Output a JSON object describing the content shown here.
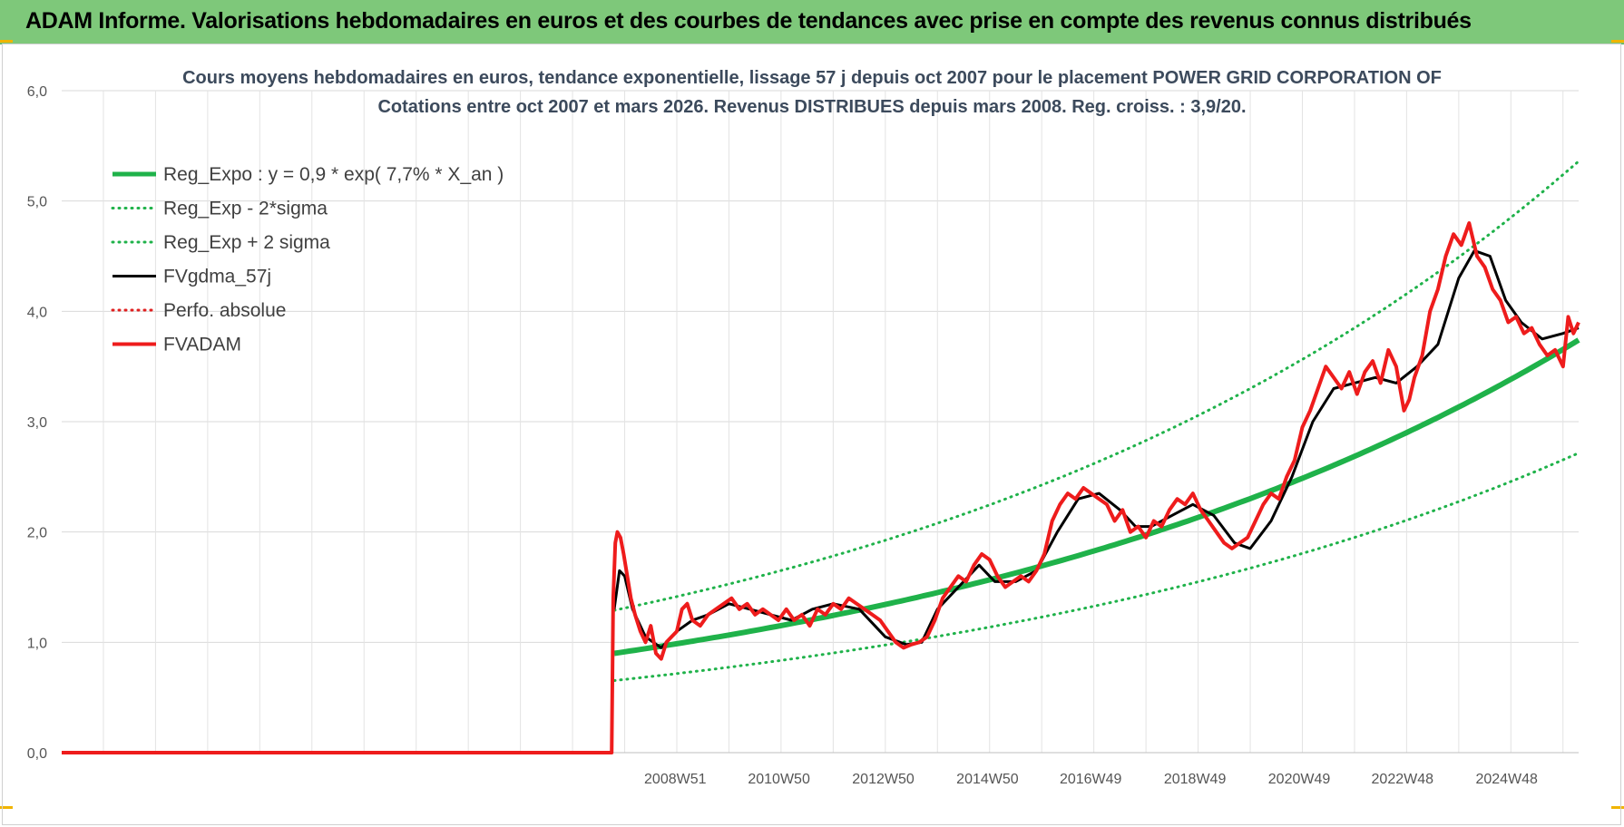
{
  "banner": {
    "title": "ADAM Informe. Valorisations hebdomadaires en euros et des courbes de tendances avec prise en compte des revenus connus distribués",
    "color": "#7ec87a"
  },
  "chart_data": {
    "type": "line",
    "title_lines": [
      "Cours moyens hebdomadaires en euros, tendance exponentielle, lissage 57 j depuis oct 2007 pour le placement POWER GRID CORPORATION OF",
      "Cotations entre oct 2007 et mars 2026.  Revenus DISTRIBUES depuis mars 2008. Reg. croiss. : 3,9/20."
    ],
    "ylim": [
      0,
      6
    ],
    "y_ticks": [
      "0,0",
      "1,0",
      "2,0",
      "3,0",
      "4,0",
      "5,0",
      "6,0"
    ],
    "x_range": [
      1997.2,
      2026.3
    ],
    "x_ticks": [
      {
        "label": "2008W51",
        "x": 2008.97
      },
      {
        "label": "2010W50",
        "x": 2010.96
      },
      {
        "label": "2012W50",
        "x": 2012.96
      },
      {
        "label": "2014W50",
        "x": 2014.96
      },
      {
        "label": "2016W49",
        "x": 2016.94
      },
      {
        "label": "2018W49",
        "x": 2018.94
      },
      {
        "label": "2020W49",
        "x": 2020.94
      },
      {
        "label": "2022W48",
        "x": 2022.92
      },
      {
        "label": "2024W48",
        "x": 2024.92
      }
    ],
    "grid": true,
    "legend_position": "top-left",
    "series": [
      {
        "name": "Reg_Expo : y = 0,9 * exp( 7,7% *  X_an )",
        "color": "#1fb24a",
        "style": "solid",
        "width": 6,
        "kind": "exp",
        "a": 0.9,
        "rate": 0.077,
        "offset": 0,
        "start": 2007.8,
        "end": 2026.3
      },
      {
        "name": "Reg_Exp - 2*sigma",
        "color": "#1fb24a",
        "style": "dotted",
        "width": 3,
        "kind": "exp",
        "a": 0.9,
        "rate": 0.077,
        "offset": -0.32,
        "start": 2007.8,
        "end": 2026.3
      },
      {
        "name": "Reg_Exp + 2 sigma",
        "color": "#1fb24a",
        "style": "dotted",
        "width": 3,
        "kind": "exp",
        "a": 0.9,
        "rate": 0.077,
        "offset": 0.36,
        "start": 2007.8,
        "end": 2026.3
      },
      {
        "name": "FVgdma_57j",
        "color": "#000000",
        "style": "solid",
        "width": 3,
        "kind": "points",
        "x": [
          2007.8,
          2007.9,
          2008.0,
          2008.15,
          2008.4,
          2008.7,
          2009.0,
          2009.3,
          2009.6,
          2010.0,
          2010.4,
          2010.8,
          2011.2,
          2011.6,
          2012.0,
          2012.5,
          2013.0,
          2013.4,
          2013.7,
          2014.0,
          2014.4,
          2014.8,
          2015.1,
          2015.5,
          2015.9,
          2016.3,
          2016.7,
          2017.1,
          2017.5,
          2017.8,
          2018.1,
          2018.5,
          2018.9,
          2019.3,
          2019.7,
          2020.0,
          2020.4,
          2020.8,
          2021.2,
          2021.6,
          2022.0,
          2022.4,
          2022.8,
          2023.2,
          2023.6,
          2024.0,
          2024.3,
          2024.6,
          2024.9,
          2025.2,
          2025.6,
          2026.0,
          2026.3
        ],
        "y": [
          1.3,
          1.65,
          1.6,
          1.3,
          1.05,
          0.95,
          1.1,
          1.2,
          1.25,
          1.35,
          1.3,
          1.25,
          1.2,
          1.3,
          1.35,
          1.3,
          1.05,
          0.98,
          1.0,
          1.3,
          1.5,
          1.7,
          1.55,
          1.55,
          1.65,
          2.0,
          2.3,
          2.35,
          2.2,
          2.05,
          2.05,
          2.15,
          2.25,
          2.15,
          1.9,
          1.85,
          2.1,
          2.5,
          3.0,
          3.3,
          3.35,
          3.4,
          3.35,
          3.5,
          3.7,
          4.3,
          4.55,
          4.5,
          4.1,
          3.9,
          3.75,
          3.8,
          3.85
        ]
      },
      {
        "name": "Perfo. absolue",
        "color": "#e02020",
        "style": "dotted",
        "width": 2,
        "kind": "none"
      },
      {
        "name": "FVADAM",
        "color": "#ee1c1c",
        "style": "solid",
        "width": 4,
        "kind": "points",
        "x": [
          1997.2,
          2007.75,
          2007.78,
          2007.82,
          2007.86,
          2007.92,
          2007.98,
          2008.05,
          2008.12,
          2008.2,
          2008.3,
          2008.4,
          2008.5,
          2008.6,
          2008.7,
          2008.8,
          2008.9,
          2009.0,
          2009.1,
          2009.2,
          2009.3,
          2009.45,
          2009.6,
          2009.75,
          2009.9,
          2010.05,
          2010.2,
          2010.35,
          2010.5,
          2010.65,
          2010.8,
          2010.95,
          2011.1,
          2011.25,
          2011.4,
          2011.55,
          2011.7,
          2011.85,
          2012.0,
          2012.15,
          2012.3,
          2012.45,
          2012.6,
          2012.75,
          2012.9,
          2013.05,
          2013.2,
          2013.35,
          2013.5,
          2013.65,
          2013.8,
          2013.95,
          2014.1,
          2014.25,
          2014.4,
          2014.55,
          2014.7,
          2014.85,
          2015.0,
          2015.15,
          2015.3,
          2015.45,
          2015.6,
          2015.75,
          2015.9,
          2016.05,
          2016.2,
          2016.35,
          2016.5,
          2016.65,
          2016.8,
          2016.95,
          2017.1,
          2017.25,
          2017.4,
          2017.55,
          2017.7,
          2017.85,
          2018.0,
          2018.15,
          2018.3,
          2018.45,
          2018.6,
          2018.75,
          2018.9,
          2019.05,
          2019.2,
          2019.35,
          2019.5,
          2019.65,
          2019.8,
          2019.95,
          2020.1,
          2020.25,
          2020.4,
          2020.55,
          2020.7,
          2020.85,
          2021.0,
          2021.15,
          2021.3,
          2021.45,
          2021.6,
          2021.75,
          2021.9,
          2022.05,
          2022.2,
          2022.35,
          2022.5,
          2022.65,
          2022.8,
          2022.95,
          2023.05,
          2023.15,
          2023.3,
          2023.45,
          2023.6,
          2023.75,
          2023.9,
          2024.05,
          2024.2,
          2024.35,
          2024.5,
          2024.65,
          2024.8,
          2024.95,
          2025.1,
          2025.25,
          2025.4,
          2025.55,
          2025.7,
          2025.85,
          2026.0,
          2026.1,
          2026.2,
          2026.3
        ],
        "y": [
          0.0,
          0.0,
          1.4,
          1.9,
          2.0,
          1.95,
          1.8,
          1.6,
          1.4,
          1.25,
          1.1,
          1.0,
          1.15,
          0.9,
          0.85,
          1.0,
          1.05,
          1.1,
          1.3,
          1.35,
          1.2,
          1.15,
          1.25,
          1.3,
          1.35,
          1.4,
          1.3,
          1.35,
          1.25,
          1.3,
          1.25,
          1.2,
          1.3,
          1.2,
          1.25,
          1.15,
          1.3,
          1.25,
          1.35,
          1.3,
          1.4,
          1.35,
          1.3,
          1.25,
          1.2,
          1.1,
          1.0,
          0.95,
          0.98,
          1.0,
          1.05,
          1.2,
          1.4,
          1.5,
          1.6,
          1.55,
          1.7,
          1.8,
          1.75,
          1.6,
          1.5,
          1.55,
          1.6,
          1.55,
          1.65,
          1.8,
          2.1,
          2.25,
          2.35,
          2.3,
          2.4,
          2.35,
          2.3,
          2.25,
          2.1,
          2.2,
          2.0,
          2.05,
          1.95,
          2.1,
          2.05,
          2.2,
          2.3,
          2.25,
          2.35,
          2.2,
          2.1,
          2.0,
          1.9,
          1.85,
          1.9,
          1.95,
          2.1,
          2.25,
          2.35,
          2.3,
          2.5,
          2.65,
          2.95,
          3.1,
          3.3,
          3.5,
          3.4,
          3.3,
          3.45,
          3.25,
          3.45,
          3.55,
          3.35,
          3.65,
          3.5,
          3.1,
          3.2,
          3.4,
          3.6,
          4.0,
          4.2,
          4.5,
          4.7,
          4.6,
          4.8,
          4.5,
          4.4,
          4.2,
          4.1,
          3.9,
          3.95,
          3.8,
          3.85,
          3.7,
          3.6,
          3.65,
          3.5,
          3.95,
          3.8,
          3.9
        ]
      }
    ]
  }
}
